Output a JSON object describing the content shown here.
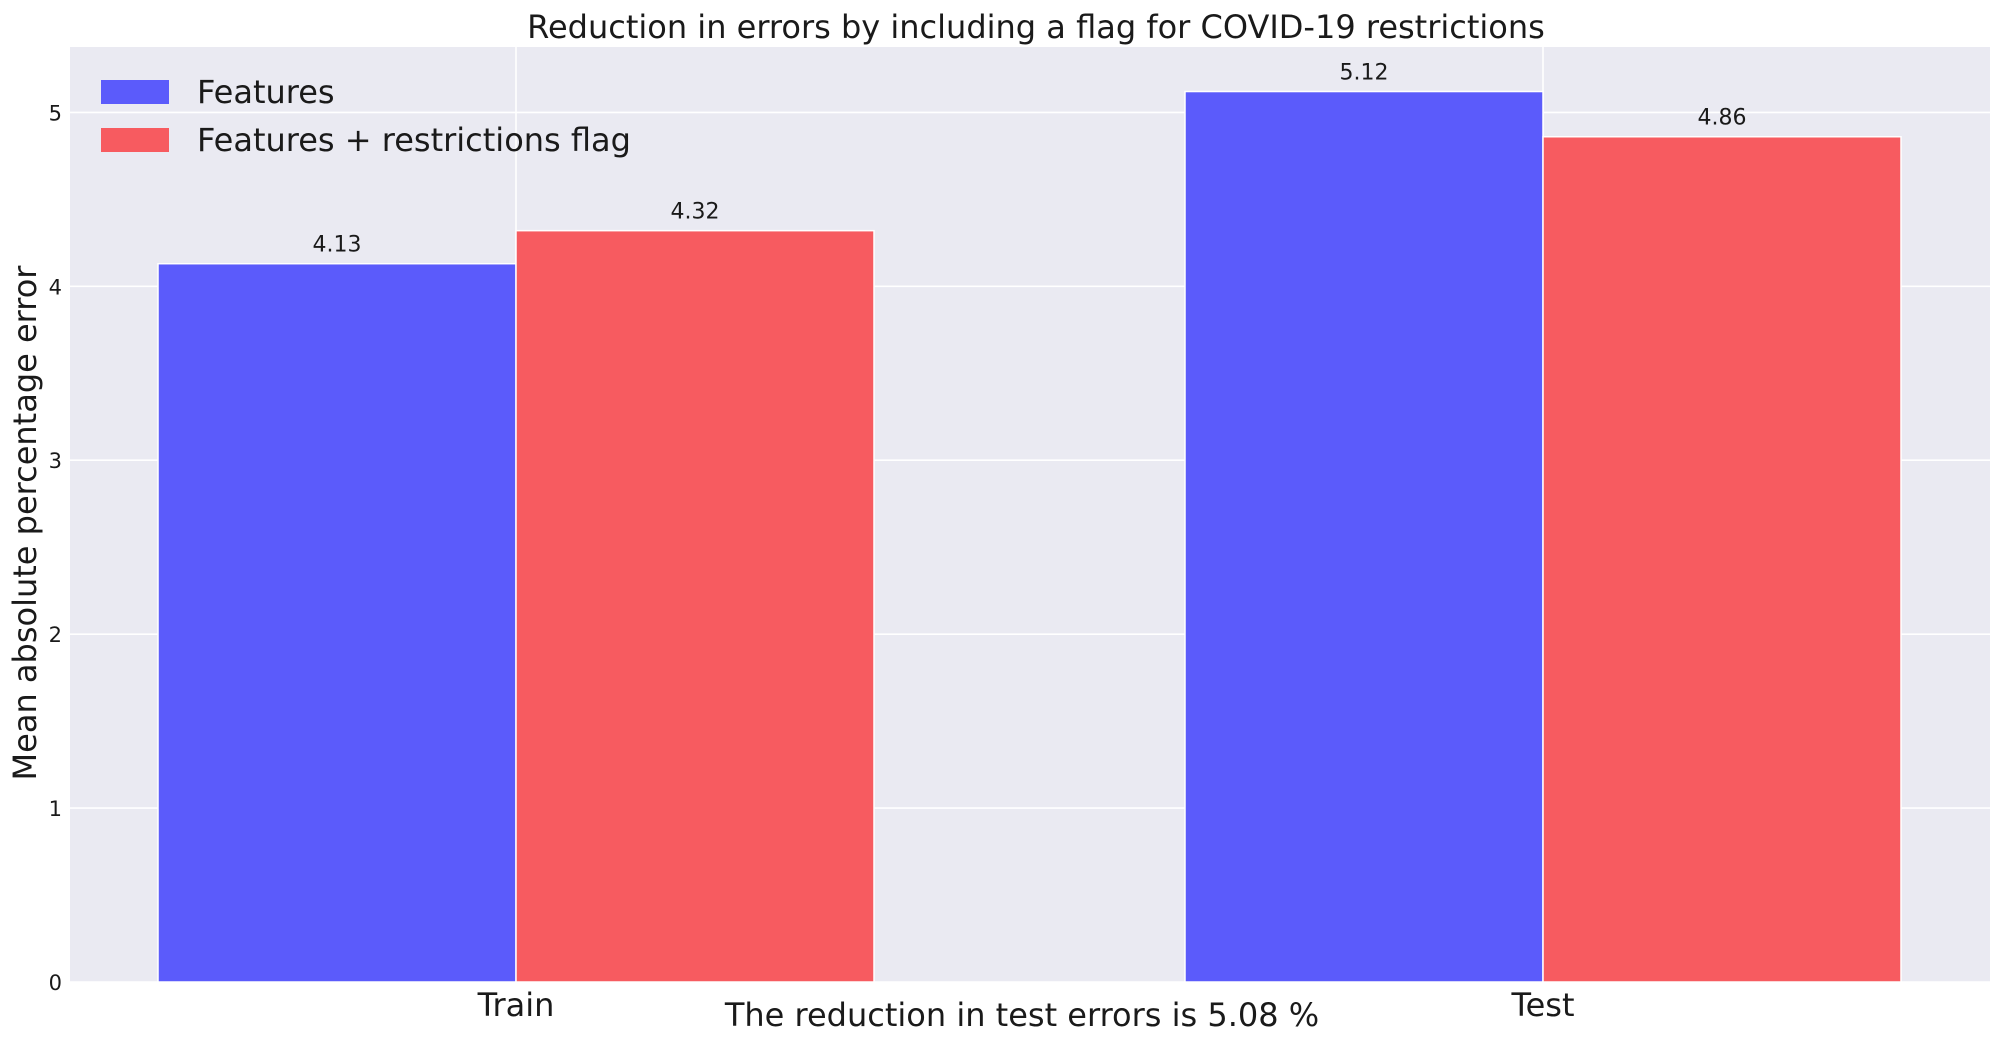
{
  "chart_data": {
    "type": "bar",
    "title": "Reduction in errors by including a flag for COVID-19 restrictions",
    "xlabel": "The reduction in test errors is 5.08 %",
    "ylabel": "Mean absolute percentage error",
    "categories": [
      "Train",
      "Test"
    ],
    "series": [
      {
        "name": "Features",
        "values": [
          4.13,
          5.12
        ],
        "color": "#5b5bfb"
      },
      {
        "name": "Features + restrictions flag",
        "values": [
          4.32,
          4.86
        ],
        "color": "#f75b60"
      }
    ],
    "data_labels": [
      [
        "4.13",
        "5.12"
      ],
      [
        "4.32",
        "4.86"
      ]
    ],
    "yticks": [
      0,
      1,
      2,
      3,
      4,
      5
    ],
    "ytick_labels": [
      "0",
      "1",
      "2",
      "3",
      "4",
      "5"
    ],
    "ylim": [
      0,
      5.376
    ],
    "grid": true,
    "legend_position": "top-left",
    "background_color": "#eaeaf2",
    "grid_color": "#ffffff"
  }
}
